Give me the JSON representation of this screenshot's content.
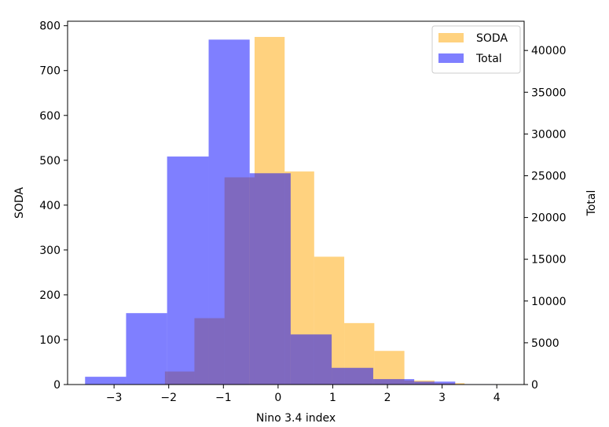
{
  "chart_data": {
    "type": "bar",
    "title": "",
    "xlabel": "Nino 3.4 index",
    "ylabel_left": "SODA",
    "ylabel_right": "Total",
    "xlim": [
      -3.85,
      4.5
    ],
    "ylim_left": [
      0,
      810
    ],
    "ylim_right": [
      0,
      43500
    ],
    "x_ticks": [
      -3,
      -2,
      -1,
      0,
      1,
      2,
      3,
      4
    ],
    "x_tick_labels": [
      "−3",
      "−2",
      "−1",
      "0",
      "1",
      "2",
      "3",
      "4"
    ],
    "y_left_ticks": [
      0,
      100,
      200,
      300,
      400,
      500,
      600,
      700,
      800
    ],
    "y_left_tick_labels": [
      "0",
      "100",
      "200",
      "300",
      "400",
      "500",
      "600",
      "700",
      "800"
    ],
    "y_right_ticks": [
      0,
      5000,
      10000,
      15000,
      20000,
      25000,
      30000,
      35000,
      40000
    ],
    "y_right_tick_labels": [
      "0",
      "5000",
      "10000",
      "15000",
      "20000",
      "25000",
      "30000",
      "35000",
      "40000"
    ],
    "legend_position": "upper right",
    "series": [
      {
        "name": "SODA",
        "axis": "left",
        "color": "#ffa500",
        "opacity": 0.5,
        "bin_edges": [
          -2.07,
          -1.53,
          -0.98,
          -0.43,
          0.12,
          0.66,
          1.21,
          1.76,
          2.31,
          2.86,
          3.41
        ],
        "counts": [
          29,
          148,
          462,
          775,
          475,
          285,
          137,
          75,
          9,
          3
        ]
      },
      {
        "name": "Total",
        "axis": "right",
        "color": "#0000ff",
        "opacity": 0.5,
        "bin_edges": [
          -3.53,
          -2.78,
          -2.03,
          -1.27,
          -0.52,
          0.23,
          0.98,
          1.74,
          2.49,
          3.24,
          4.0
        ],
        "counts": [
          930,
          8550,
          27300,
          41300,
          25300,
          6000,
          2000,
          650,
          350,
          50
        ]
      }
    ],
    "overlap_color": "#7f5a7f"
  }
}
